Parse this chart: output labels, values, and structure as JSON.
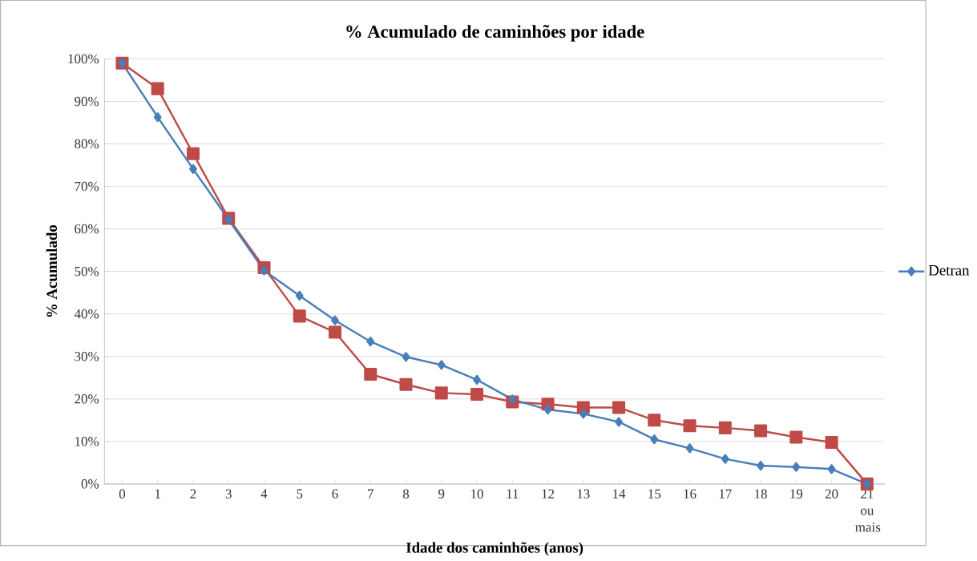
{
  "chart_data": {
    "type": "line",
    "title": "% Acumulado de caminhões por idade",
    "xlabel": "Idade dos caminhões (anos)",
    "ylabel": "% Acumulado",
    "categories": [
      "0",
      "1",
      "2",
      "3",
      "4",
      "5",
      "6",
      "7",
      "8",
      "9",
      "10",
      "11",
      "12",
      "13",
      "14",
      "15",
      "16",
      "17",
      "18",
      "19",
      "20",
      "21 ou mais"
    ],
    "series": [
      {
        "color": "#be4b48",
        "marker": "square",
        "values": [
          99,
          93,
          77.7,
          62.5,
          50.9,
          39.5,
          35.7,
          25.8,
          23.4,
          21.4,
          21.1,
          19.3,
          18.8,
          18,
          18,
          15,
          13.7,
          13.2,
          12.5,
          11,
          9.8,
          0
        ]
      },
      {
        "name": "Detran",
        "color": "#4a7ebb",
        "marker": "diamond",
        "values": [
          99,
          86.3,
          74.1,
          62.2,
          50.2,
          44.3,
          38.5,
          33.5,
          29.9,
          28,
          24.5,
          19.9,
          17.5,
          16.5,
          14.6,
          10.5,
          8.4,
          5.9,
          4.3,
          4,
          3.5,
          0
        ]
      }
    ],
    "ylim": [
      0,
      100
    ],
    "yticks": [
      {
        "value": 0,
        "label": "0%"
      },
      {
        "value": 10,
        "label": "10%"
      },
      {
        "value": 20,
        "label": "20%"
      },
      {
        "value": 30,
        "label": "30%"
      },
      {
        "value": 40,
        "label": "40%"
      },
      {
        "value": 50,
        "label": "50%"
      },
      {
        "value": 60,
        "label": "60%"
      },
      {
        "value": 70,
        "label": "70%"
      },
      {
        "value": 80,
        "label": "80%"
      },
      {
        "value": 90,
        "label": "90%"
      },
      {
        "value": 100,
        "label": "100%"
      }
    ],
    "grid": "y",
    "legend": "right",
    "line_style": "solid"
  }
}
